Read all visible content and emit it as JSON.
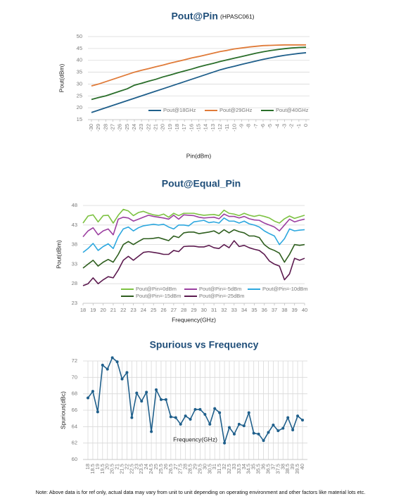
{
  "chart_data": [
    {
      "type": "line",
      "title": "Pout@Pin",
      "subtitle": "(HPASC061)",
      "xlabel": "Pin(dBm)",
      "ylabel": "Pout(dBm)",
      "x": [
        -30,
        -29,
        -28,
        -27,
        -26,
        -25,
        -24,
        -23,
        -22,
        -21,
        -20,
        -19,
        -18,
        -17,
        -16,
        -15,
        -14,
        -13,
        -12,
        -11,
        -10,
        -9,
        -8,
        -7,
        -6,
        -5,
        -4,
        -3,
        -2,
        -1,
        0
      ],
      "xlim": [
        -30,
        0
      ],
      "xticks": [
        -30,
        -29,
        -28,
        -27,
        -26,
        -25,
        -24,
        -23,
        -22,
        -21,
        -20,
        -19,
        -18,
        -17,
        -16,
        -15,
        -14,
        -13,
        -12,
        -11,
        -10,
        -9,
        -8,
        -7,
        -6,
        -5,
        -4,
        -3,
        -2,
        -1,
        0
      ],
      "ylim": [
        15,
        50
      ],
      "yticks": [
        15,
        20,
        25,
        30,
        35,
        40,
        45,
        50
      ],
      "grid": "y",
      "legend": "bottom",
      "markers": false,
      "series": [
        {
          "name": "Pout@18GHz",
          "color": "#1f5f8b",
          "values": [
            18,
            19,
            20,
            21,
            22,
            23,
            24,
            25,
            26,
            27,
            28,
            29,
            30,
            31,
            32,
            33,
            34,
            35,
            36,
            36.8,
            37.5,
            38.3,
            39,
            39.7,
            40.4,
            41,
            41.6,
            42.1,
            42.5,
            42.9,
            43.2
          ]
        },
        {
          "name": "Pout@29GHz",
          "color": "#e07b39",
          "values": [
            29.2,
            30,
            31,
            32,
            33,
            34,
            35,
            35.8,
            36.5,
            37.3,
            38,
            38.8,
            39.5,
            40.2,
            41,
            41.6,
            42.3,
            43,
            43.7,
            44.2,
            44.8,
            45.2,
            45.6,
            45.9,
            46.2,
            46.3,
            46.4,
            46.5,
            46.5,
            46.5,
            46.5
          ]
        },
        {
          "name": "Pout@40GHz",
          "color": "#2a6e2a",
          "values": [
            23.5,
            24.3,
            25,
            26,
            27,
            28,
            29.5,
            30.3,
            31.2,
            32,
            33,
            33.8,
            34.7,
            35.5,
            36.3,
            37.2,
            38,
            38.7,
            39.5,
            40.2,
            40.9,
            41.6,
            42.3,
            43,
            43.6,
            44.1,
            44.5,
            44.9,
            45.2,
            45.4,
            45.5
          ]
        }
      ]
    },
    {
      "type": "line",
      "title": "Pout@Equal_Pin",
      "xlabel": "Frequency(GHz)",
      "ylabel": "Pout(dBm)",
      "x": [
        18,
        18.5,
        19,
        19.5,
        20,
        20.5,
        21,
        21.5,
        22,
        22.5,
        23,
        23.5,
        24,
        24.5,
        25,
        25.5,
        26,
        26.5,
        27,
        27.5,
        28,
        28.5,
        29,
        29.5,
        30,
        30.5,
        31,
        31.5,
        32,
        32.5,
        33,
        33.5,
        34,
        34.5,
        35,
        35.5,
        36,
        36.5,
        37,
        37.5,
        38,
        38.5,
        39,
        39.5,
        40
      ],
      "xlim": [
        18,
        40
      ],
      "xticks": [
        18,
        19,
        20,
        21,
        22,
        23,
        24,
        25,
        26,
        27,
        28,
        29,
        30,
        31,
        32,
        33,
        34,
        35,
        36,
        37,
        38,
        39,
        40
      ],
      "ylim": [
        23,
        48
      ],
      "yticks": [
        23,
        28,
        33,
        38,
        43,
        48
      ],
      "grid": "y",
      "legend": "bottom",
      "markers": false,
      "series": [
        {
          "name": "Pout@Pin=0dBm",
          "color": "#7dc242",
          "values": [
            43.5,
            45.3,
            45.6,
            43.8,
            45.4,
            45.5,
            43.5,
            45.5,
            47,
            46.6,
            45.4,
            46.2,
            46.5,
            46,
            45.6,
            45.4,
            45.8,
            45,
            46,
            45.4,
            46,
            46,
            46,
            45.7,
            45.5,
            45.6,
            45.7,
            45.4,
            46.8,
            46,
            45.8,
            45.4,
            46,
            45.5,
            45.2,
            45.5,
            45.2,
            44.8,
            44,
            43.5,
            44.6,
            45.3,
            44.7,
            45.1,
            45.5
          ]
        },
        {
          "name": "Pout@Pin=-5dBm",
          "color": "#9b3fa0",
          "values": [
            40,
            41.5,
            42.3,
            40.5,
            41.5,
            42,
            40.5,
            44.5,
            45,
            44.8,
            44,
            44.5,
            45,
            45.5,
            45.2,
            45,
            44.8,
            44.5,
            45.5,
            44.5,
            45.6,
            45.5,
            45.4,
            45,
            44.8,
            44.9,
            45,
            44.6,
            45.8,
            45.2,
            45.2,
            44.8,
            45.2,
            44.6,
            44.3,
            44.2,
            43.5,
            43,
            42.5,
            41.5,
            43,
            44.5,
            43.8,
            44.2,
            44.5
          ]
        },
        {
          "name": "Pout@Pin=-10dBm",
          "color": "#2ea8df",
          "values": [
            36,
            37,
            38.3,
            36.5,
            37.5,
            38.2,
            37,
            40,
            42,
            42.5,
            41.5,
            42.3,
            42.8,
            43,
            43.2,
            43,
            43.2,
            42.5,
            42,
            43,
            43,
            42.8,
            43.8,
            44,
            44.2,
            43.6,
            43.8,
            43.5,
            44.8,
            44,
            44,
            43.5,
            44,
            43.3,
            43,
            42.5,
            41.5,
            40.8,
            40.2,
            38,
            39.5,
            42,
            41.5,
            41.7,
            41.8
          ]
        },
        {
          "name": "Pout@Pin=-15dBm",
          "color": "#2e5e1e",
          "values": [
            32,
            33,
            34,
            32.5,
            33.5,
            34.2,
            33.5,
            35.5,
            38,
            38.8,
            38,
            38.8,
            39.5,
            39.5,
            39.6,
            39.8,
            39.4,
            39,
            40.2,
            39.8,
            41,
            41.2,
            41.2,
            40.8,
            41,
            41.2,
            41.5,
            40.8,
            41.8,
            41,
            41.8,
            41.3,
            41,
            40.2,
            40.2,
            39.8,
            38,
            37,
            36.5,
            35.8,
            33.5,
            35.5,
            38,
            37.8,
            38
          ]
        },
        {
          "name": "Pout@Pin=-25dBm",
          "color": "#5c1a4f",
          "values": [
            27.5,
            28,
            29.5,
            28,
            29,
            29.8,
            29.5,
            31.5,
            34,
            35,
            34,
            35,
            36,
            36.2,
            36,
            35.8,
            35.5,
            35.5,
            36.5,
            36.2,
            37.5,
            37.6,
            37.6,
            37.4,
            37.4,
            37.8,
            37.2,
            37,
            38,
            37.2,
            39,
            37.5,
            37.8,
            37.2,
            36.8,
            36.5,
            35.5,
            33.8,
            33,
            32.5,
            29,
            30.5,
            34.5,
            34,
            34.5
          ]
        }
      ]
    },
    {
      "type": "line",
      "title": "Spurious vs Frequency",
      "xlabel": "Frequency(GHz)",
      "ylabel": "Spurious(dBc)",
      "x": [
        18,
        18.5,
        19,
        19.5,
        20,
        20.5,
        21,
        21.5,
        22,
        22.5,
        23,
        23.5,
        24,
        24.5,
        25,
        25.5,
        26,
        26.5,
        27,
        27.5,
        28,
        28.5,
        29,
        29.5,
        30,
        30.5,
        31,
        31.5,
        32,
        32.5,
        33,
        33.5,
        34,
        34.5,
        35,
        35.5,
        36,
        36.5,
        37,
        37.5,
        38,
        38.5,
        39,
        39.5,
        40
      ],
      "xlim": [
        18,
        40
      ],
      "xticks": [
        18,
        18.5,
        19,
        19.5,
        20,
        20.5,
        21,
        21.5,
        22,
        22.5,
        23,
        23.5,
        24,
        24.5,
        25,
        25.5,
        26,
        26.5,
        27,
        27.5,
        28,
        28.5,
        29,
        29.5,
        30,
        30.5,
        31,
        31.5,
        32,
        32.5,
        33,
        33.5,
        34,
        34.5,
        35,
        35.5,
        36,
        36.5,
        37,
        37.5,
        38,
        38.5,
        39,
        39.5,
        40
      ],
      "ylim": [
        60,
        72
      ],
      "yticks": [
        60,
        62,
        64,
        66,
        68,
        70,
        72
      ],
      "grid": "both",
      "markers": true,
      "series": [
        {
          "name": "Spurious",
          "color": "#1f5f8b",
          "values": [
            67.5,
            68.3,
            65.8,
            71.5,
            71,
            72.4,
            71.9,
            69.8,
            70.6,
            65.1,
            68.1,
            67.1,
            68.2,
            63.4,
            68.5,
            67.3,
            67.3,
            65.2,
            65.1,
            64.3,
            65.3,
            64.9,
            66.1,
            66.1,
            65.5,
            64.3,
            66.2,
            65.7,
            62,
            63.9,
            63.1,
            64.3,
            64.1,
            65.7,
            63.2,
            63.1,
            62.3,
            63.3,
            64.2,
            63.5,
            63.8,
            65.1,
            63.6,
            65.3,
            64.8
          ]
        }
      ]
    }
  ],
  "note": "Note: Above data is for ref only, actual data may vary from unit to unit depending on operating environment and other factors like material lots etc."
}
